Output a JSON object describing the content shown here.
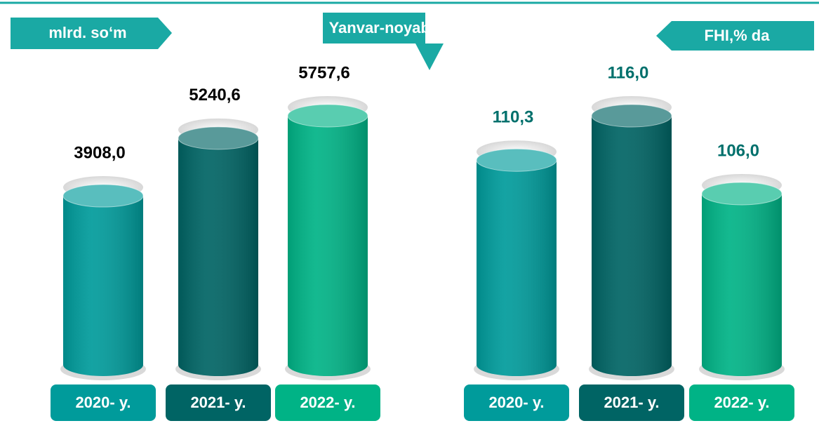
{
  "title": "Yanvar-noyabr",
  "chart_data": [
    {
      "type": "cylinder",
      "title": "mlrd. so‘m",
      "categories": [
        "2020- y.",
        "2021- y.",
        "2022- y."
      ],
      "values": [
        3908.0,
        5240.6,
        5757.6
      ],
      "value_labels": [
        "3908,0",
        "5240,6",
        "5757,6"
      ],
      "colors": [
        "#009b9b",
        "#006464",
        "#00b386"
      ]
    },
    {
      "type": "cylinder",
      "title": "FHI,% da",
      "categories": [
        "2020- y.",
        "2021- y.",
        "2022- y."
      ],
      "values": [
        110.3,
        116.0,
        106.0
      ],
      "value_labels": [
        "110,3",
        "116,0",
        "106,0"
      ],
      "colors": [
        "#009b9b",
        "#006464",
        "#00b386"
      ]
    }
  ]
}
